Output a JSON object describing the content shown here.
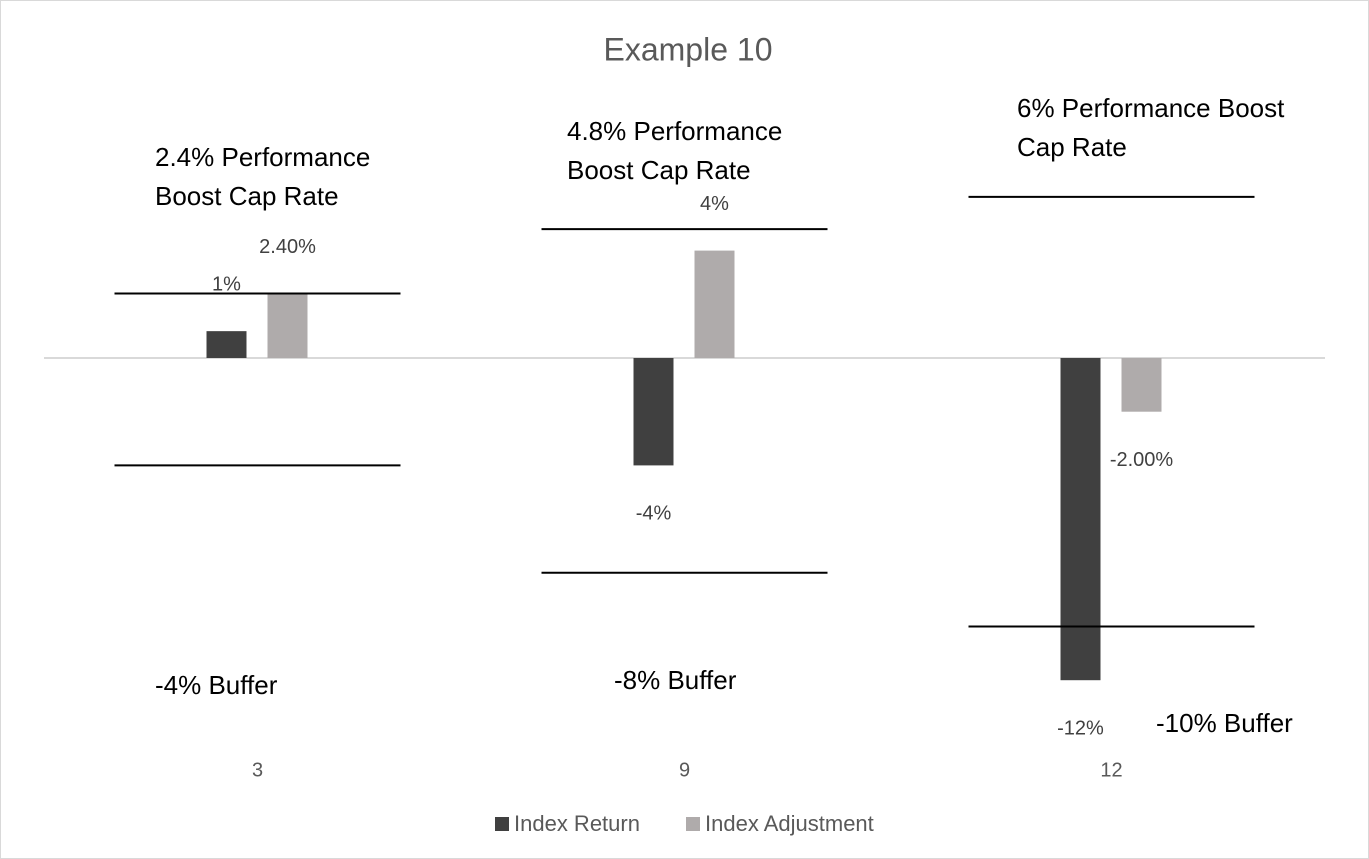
{
  "chart_data": {
    "type": "bar",
    "title": "Example 10",
    "categories": [
      "3",
      "9",
      "12"
    ],
    "series": [
      {
        "name": "Index Return",
        "color": "#404040",
        "values": [
          1,
          -4,
          -12
        ],
        "value_labels": [
          "1%",
          "-4%",
          "-12%"
        ]
      },
      {
        "name": "Index Adjustment",
        "color": "#afabab",
        "values": [
          2.4,
          4,
          -2
        ],
        "value_labels": [
          "2.40%",
          "4%",
          "-2.00%"
        ]
      }
    ],
    "cap_rates": [
      2.4,
      4.8,
      6
    ],
    "cap_labels": [
      "2.4% Performance Boost Cap Rate",
      "4.8% Performance Boost Cap Rate",
      "6% Performance Boost Cap Rate"
    ],
    "buffers": [
      -4,
      -8,
      -10
    ],
    "buffer_labels": [
      "-4% Buffer",
      "-8% Buffer",
      "-10% Buffer"
    ],
    "ylim": [
      -14,
      10
    ],
    "legend": "bottom"
  }
}
